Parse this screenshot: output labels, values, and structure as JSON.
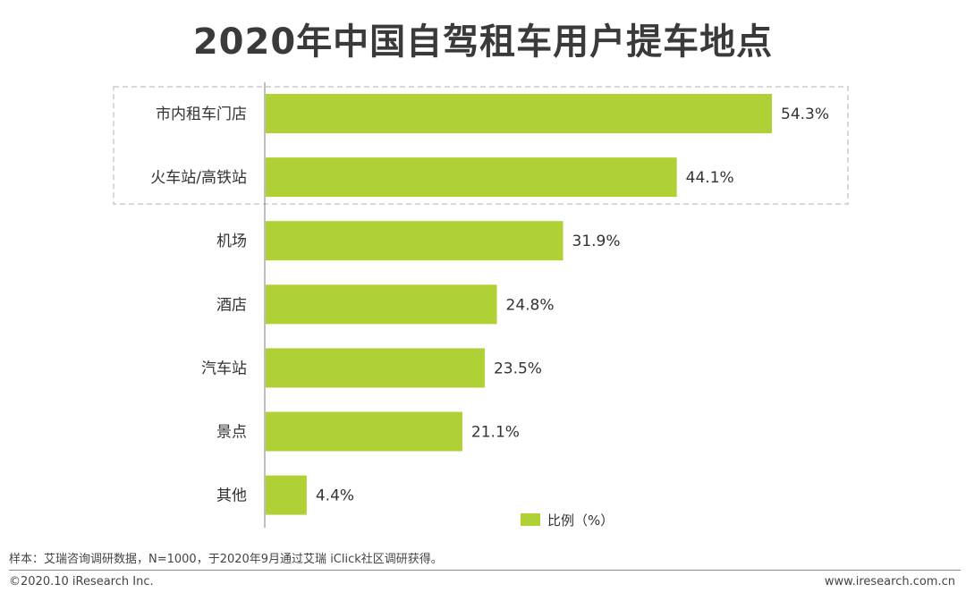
{
  "chart_data": {
    "type": "bar",
    "orientation": "horizontal",
    "title": "2020年中国自驾租车用户提车地点",
    "categories": [
      "市内租车门店",
      "火车站/高铁站",
      "机场",
      "酒店",
      "汽车站",
      "景点",
      "其他"
    ],
    "series": [
      {
        "name": "比例（%）",
        "values": [
          54.3,
          44.1,
          31.9,
          24.8,
          23.5,
          21.1,
          4.4
        ],
        "labels": [
          "54.3%",
          "44.1%",
          "31.9%",
          "24.8%",
          "23.5%",
          "21.1%",
          "4.4%"
        ]
      }
    ],
    "xlim": [
      0,
      60
    ],
    "grid": false,
    "legend": "bottom-right",
    "highlighted_categories": [
      "市内租车门店",
      "火车站/高铁站"
    ],
    "bar_color": "#b0d136",
    "highlight_border_color": "#cccccc"
  },
  "footer": {
    "source_note": "样本：艾瑞咨询调研数据，N=1000，于2020年9月通过艾瑞 iClick社区调研获得。",
    "copyright": "©2020.10 iResearch Inc.",
    "website": "www.iresearch.com.cn"
  }
}
